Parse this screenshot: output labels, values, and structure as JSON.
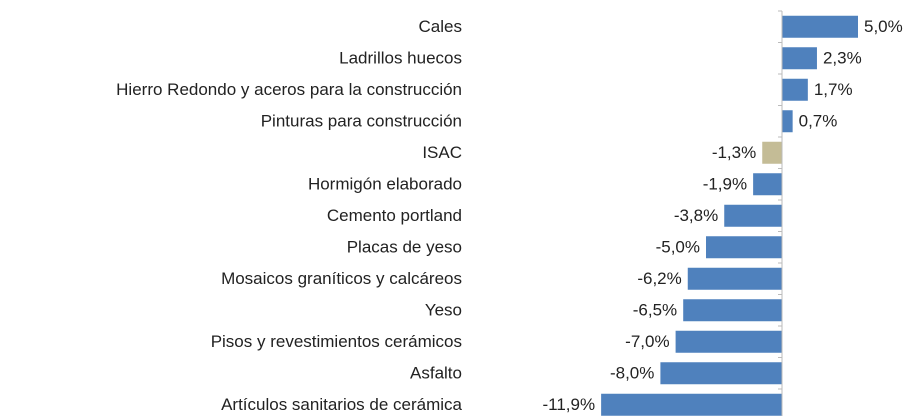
{
  "chart_data": {
    "type": "hbar",
    "categories": [
      "Cales",
      "Ladrillos huecos",
      "Hierro Redondo y aceros para la construcción",
      "Pinturas para construcción",
      "ISAC",
      "Hormigón elaborado",
      "Cemento portland",
      "Placas de yeso",
      "Mosaicos graníticos y calcáreos",
      "Yeso",
      "Pisos y revestimientos cerámicos",
      "Asfalto",
      "Artículos sanitarios de cerámica"
    ],
    "values": [
      5.0,
      2.3,
      1.7,
      0.7,
      -1.3,
      -1.9,
      -3.8,
      -5.0,
      -6.2,
      -6.5,
      -7.0,
      -8.0,
      -11.9
    ],
    "value_labels": [
      "5,0%",
      "2,3%",
      "1,7%",
      "0,7%",
      "-1,3%",
      "-1,9%",
      "-3,8%",
      "-5,0%",
      "-6,2%",
      "-6,5%",
      "-7,0%",
      "-8,0%",
      "-11,9%"
    ],
    "colors": [
      "#4f81bd",
      "#4f81bd",
      "#4f81bd",
      "#4f81bd",
      "#c4bc96",
      "#4f81bd",
      "#4f81bd",
      "#4f81bd",
      "#4f81bd",
      "#4f81bd",
      "#4f81bd",
      "#4f81bd",
      "#4f81bd"
    ],
    "xlim": [
      -12,
      6
    ]
  }
}
